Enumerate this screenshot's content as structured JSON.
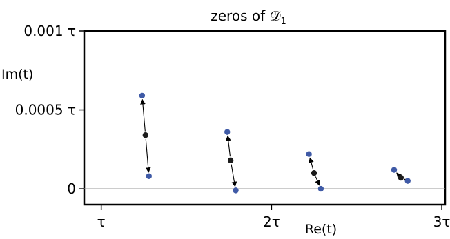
{
  "chart_data": {
    "type": "scatter",
    "title": "zeros of 𝒟",
    "title_subscript": "1",
    "xlabel": "Re(t)",
    "ylabel": "Im(t)",
    "xlim": [
      0.9,
      3.02
    ],
    "ylim": [
      -0.0001,
      0.001
    ],
    "x_ticks": [
      {
        "value": 1,
        "label": "τ"
      },
      {
        "value": 2,
        "label": "2τ"
      },
      {
        "value": 3,
        "label": "3τ"
      }
    ],
    "y_ticks": [
      {
        "value": 0,
        "label": "0"
      },
      {
        "value": 0.0005,
        "label": "0.0005 τ"
      },
      {
        "value": 0.001,
        "label": "0.001 τ"
      }
    ],
    "reference_line_y": 0,
    "grid": false,
    "legend": "none",
    "colors": {
      "endpoint": "#3f5aa6",
      "midpoint": "#1c1c1c",
      "baseline": "#9a9a9a",
      "axis": "#000000"
    },
    "zeros": [
      {
        "mid": [
          1.26,
          0.00034
        ],
        "ends": [
          [
            1.24,
            0.00059
          ],
          [
            1.28,
            8e-05
          ]
        ]
      },
      {
        "mid": [
          1.76,
          0.00018
        ],
        "ends": [
          [
            1.74,
            0.00036
          ],
          [
            1.79,
            -1e-05
          ]
        ]
      },
      {
        "mid": [
          2.25,
          0.0001
        ],
        "ends": [
          [
            2.22,
            0.00022
          ],
          [
            2.29,
            0.0
          ]
        ]
      },
      {
        "mid": [
          2.76,
          7e-05
        ],
        "ends": [
          [
            2.72,
            0.00012
          ],
          [
            2.8,
            5e-05
          ]
        ]
      }
    ]
  }
}
